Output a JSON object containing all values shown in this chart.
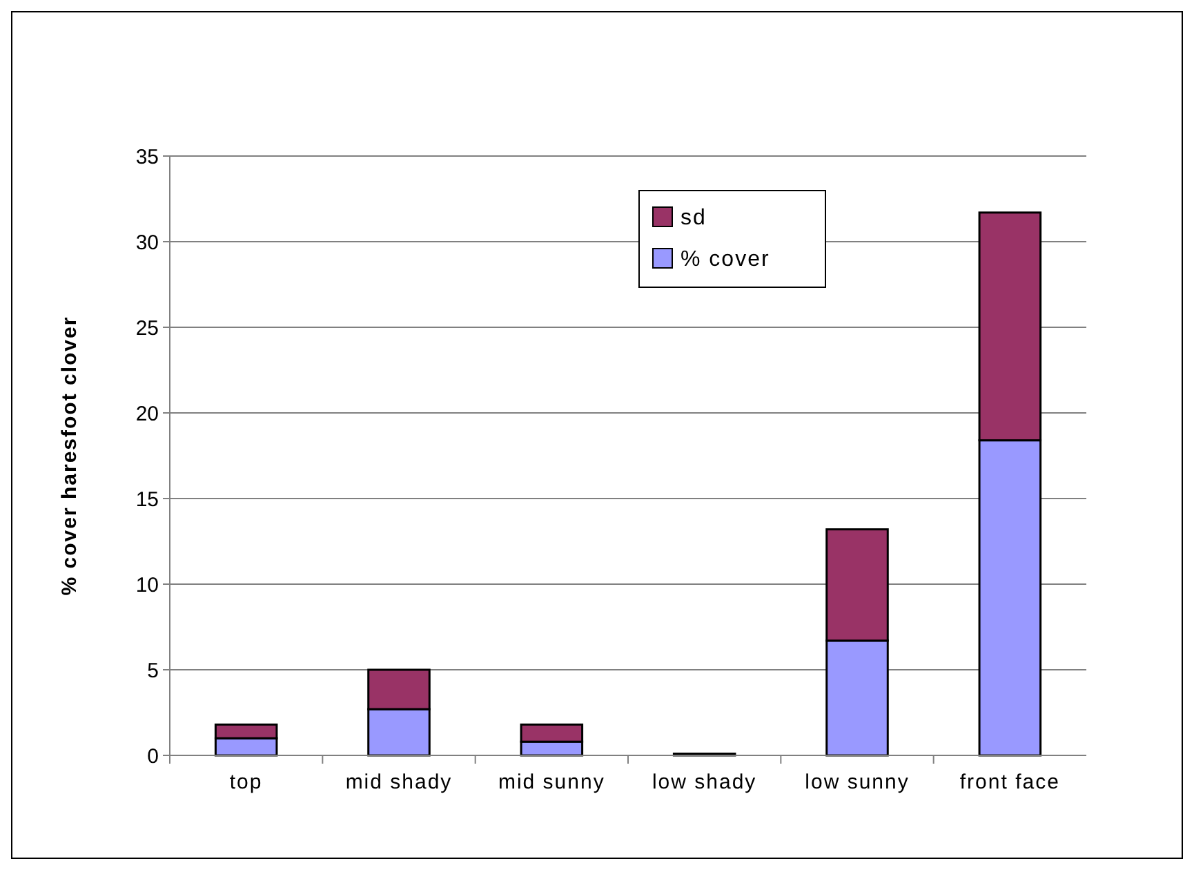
{
  "chart_data": {
    "type": "bar",
    "stacked": true,
    "ylabel": "% cover haresfoot clover",
    "categories": [
      "top",
      "mid shady",
      "mid sunny",
      "low shady",
      "low sunny",
      "front face"
    ],
    "series": [
      {
        "name": "% cover",
        "color": "#9999ff",
        "values": [
          1.0,
          2.7,
          0.8,
          0,
          6.7,
          18.4
        ]
      },
      {
        "name": "sd",
        "color": "#993366",
        "values": [
          0.8,
          2.3,
          1.0,
          0.1,
          6.5,
          13.3
        ]
      }
    ],
    "ylim": [
      0,
      35
    ],
    "yticks": [
      0,
      5,
      10,
      15,
      20,
      25,
      30,
      35
    ],
    "grid": "y",
    "legend": "top"
  }
}
